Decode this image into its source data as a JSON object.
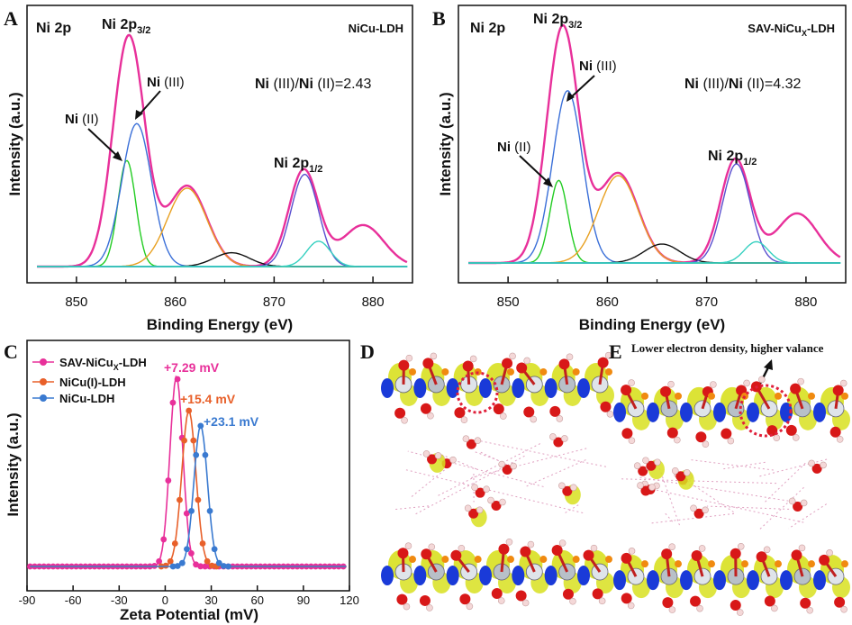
{
  "chart_data": [
    {
      "panel": "A",
      "type": "line",
      "title": "NiCu-LDH",
      "core_level": "Ni 2p",
      "ratio_label_prefix": "Ni (III)/Ni (II)=",
      "ratio_value": "2.43",
      "xlabel": "Binding Energy (eV)",
      "ylabel": "Intensity (a.u.)",
      "xlim": [
        845,
        884
      ],
      "xticks": [
        "850",
        "860",
        "870",
        "880"
      ],
      "annotations": [
        "Ni 2p3/2",
        "Ni (III)",
        "Ni (II)",
        "Ni 2p1/2"
      ],
      "series": [
        {
          "name": "envelope",
          "color": "#e8309a",
          "peaks": [
            {
              "center": 855.3,
              "height": 1.0
            },
            {
              "center": 861.2,
              "height": 0.35
            },
            {
              "center": 873.0,
              "height": 0.42
            },
            {
              "center": 879.0,
              "height": 0.18
            }
          ]
        },
        {
          "name": "Ni (II) 2p3/2",
          "color": "#22cc22",
          "center": 855.1,
          "height": 0.46
        },
        {
          "name": "Ni (III) 2p3/2",
          "color": "#3a6fd8",
          "center": 856.1,
          "height": 0.62
        },
        {
          "name": "satellite 1",
          "color": "#e8a020",
          "center": 861.2,
          "height": 0.34
        },
        {
          "name": "satellite 2",
          "color": "#111111",
          "center": 865.7,
          "height": 0.06
        },
        {
          "name": "Ni (III) 2p1/2",
          "color": "#5a4fcf",
          "center": 873.1,
          "height": 0.4
        },
        {
          "name": "Ni (II) 2p1/2",
          "color": "#35d0c0",
          "center": 874.5,
          "height": 0.11
        }
      ]
    },
    {
      "panel": "B",
      "type": "line",
      "title": "SAV-NiCux-LDH",
      "core_level": "Ni 2p",
      "ratio_label_prefix": "Ni (III)/Ni (II)=",
      "ratio_value": "4.32",
      "xlabel": "Binding Energy (eV)",
      "ylabel": "Intensity (a.u.)",
      "xlim": [
        845,
        884
      ],
      "xticks": [
        "850",
        "860",
        "870",
        "880"
      ],
      "annotations": [
        "Ni 2p3/2",
        "Ni (III)",
        "Ni (II)",
        "Ni 2p1/2"
      ],
      "series": [
        {
          "name": "envelope",
          "color": "#e8309a",
          "peaks": [
            {
              "center": 855.5,
              "height": 1.0
            },
            {
              "center": 861.1,
              "height": 0.38
            },
            {
              "center": 872.9,
              "height": 0.44
            },
            {
              "center": 879.1,
              "height": 0.21
            }
          ]
        },
        {
          "name": "Ni (II) 2p3/2",
          "color": "#22cc22",
          "center": 855.1,
          "height": 0.35
        },
        {
          "name": "Ni (III) 2p3/2",
          "color": "#3a6fd8",
          "center": 856.0,
          "height": 0.73
        },
        {
          "name": "satellite 1",
          "color": "#e8a020",
          "center": 861.1,
          "height": 0.37
        },
        {
          "name": "satellite 2",
          "color": "#111111",
          "center": 865.5,
          "height": 0.08
        },
        {
          "name": "Ni (III) 2p1/2",
          "color": "#5a4fcf",
          "center": 873.0,
          "height": 0.42
        },
        {
          "name": "Ni (II) 2p1/2",
          "color": "#35d0c0",
          "center": 875.0,
          "height": 0.09
        }
      ]
    },
    {
      "panel": "C",
      "type": "line",
      "xlabel": "Zeta Potential (mV)",
      "ylabel": "Intensity (a.u.)",
      "xlim": [
        -90,
        120
      ],
      "xticks": [
        "-90",
        "-60",
        "-30",
        "0",
        "30",
        "60",
        "90",
        "120"
      ],
      "series": [
        {
          "name": "SAV-NiCux-LDH",
          "color": "#e8309a",
          "peak_label": "+7.29 mV",
          "center": 7.29,
          "height": 1.0
        },
        {
          "name": "NiCu(I)-LDH",
          "color": "#e8602a",
          "peak_label": "+15.4 mV",
          "center": 15.4,
          "height": 0.82
        },
        {
          "name": "NiCu-LDH",
          "color": "#3a7ad0",
          "peak_label": "+23.1 mV",
          "center": 23.1,
          "height": 0.74
        }
      ]
    }
  ],
  "panels": {
    "A": "A",
    "B": "B",
    "C": "C",
    "D": "D",
    "E": "E"
  },
  "panel_e_caption": "Lower electron density, higher valance",
  "colors": {
    "isosurface_yellow": "#d8e020",
    "isosurface_blue": "#1a3ad8",
    "oxygen": "#d81818",
    "hydrogen": "#f4d8d8",
    "cu_orange": "#f08a10",
    "ni_grey": "#b8c0c8",
    "highlight_ring": "#e0203a"
  }
}
